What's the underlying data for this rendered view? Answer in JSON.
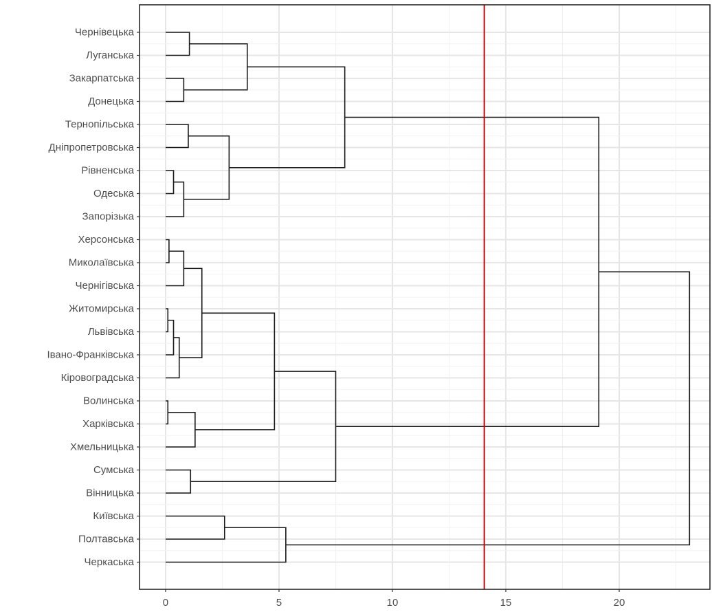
{
  "chart_data": {
    "type": "dendrogram",
    "orientation": "horizontal",
    "leaves": [
      "Чернівецька",
      "Луганська",
      "Закарпатська",
      "Донецька",
      "Тернопільська",
      "Дніпропетровська",
      "Рівненська",
      "Одеська",
      "Запорізька",
      "Херсонська",
      "Миколаївська",
      "Чернігівська",
      "Житомирська",
      "Львівська",
      "Івано-Франківська",
      "Кіровоградська",
      "Волинська",
      "Харківська",
      "Хмельницька",
      "Сумська",
      "Вінницька",
      "Київська",
      "Полтавська",
      "Черкаська"
    ],
    "merges": [
      {
        "children": [
          "L0",
          "L1"
        ],
        "height": 1.05
      },
      {
        "children": [
          "L2",
          "L3"
        ],
        "height": 0.8
      },
      {
        "children": [
          "M0",
          "M1"
        ],
        "height": 3.6
      },
      {
        "children": [
          "L4",
          "L5"
        ],
        "height": 1.0
      },
      {
        "children": [
          "L6",
          "L7"
        ],
        "height": 0.35
      },
      {
        "children": [
          "M4",
          "L8"
        ],
        "height": 0.8
      },
      {
        "children": [
          "M3",
          "M5"
        ],
        "height": 2.8
      },
      {
        "children": [
          "M2",
          "M6"
        ],
        "height": 7.9
      },
      {
        "children": [
          "L9",
          "L10"
        ],
        "height": 0.15
      },
      {
        "children": [
          "M8",
          "L11"
        ],
        "height": 0.8
      },
      {
        "children": [
          "L12",
          "L13"
        ],
        "height": 0.1
      },
      {
        "children": [
          "M10",
          "L14"
        ],
        "height": 0.35
      },
      {
        "children": [
          "M11",
          "L15"
        ],
        "height": 0.6
      },
      {
        "children": [
          "M9",
          "M12"
        ],
        "height": 1.6
      },
      {
        "children": [
          "L16",
          "L17"
        ],
        "height": 0.1
      },
      {
        "children": [
          "M14",
          "L18"
        ],
        "height": 1.3
      },
      {
        "children": [
          "M13",
          "M15"
        ],
        "height": 4.8
      },
      {
        "children": [
          "L19",
          "L20"
        ],
        "height": 1.1
      },
      {
        "children": [
          "M16",
          "M17"
        ],
        "height": 7.5
      },
      {
        "children": [
          "M7",
          "M18"
        ],
        "height": 19.1
      },
      {
        "children": [
          "L21",
          "L22"
        ],
        "height": 2.6
      },
      {
        "children": [
          "M20",
          "L23"
        ],
        "height": 5.3
      },
      {
        "children": [
          "M19",
          "M21"
        ],
        "height": 23.1
      }
    ],
    "xlim": [
      -1.15,
      24.0
    ],
    "x_ticks": [
      0,
      5,
      10,
      15,
      20
    ],
    "cut_line": 14.05,
    "grid": true,
    "title": "",
    "xlabel": "",
    "ylabel": "",
    "colors": {
      "branch": "#1a1a1a",
      "cut_line": "#cc0000",
      "grid_major": "#e6e6e6",
      "grid_minor": "#f2f2f2",
      "panel_border": "#1a1a1a",
      "label_text": "#4d4d4d",
      "tick": "#333333"
    }
  }
}
